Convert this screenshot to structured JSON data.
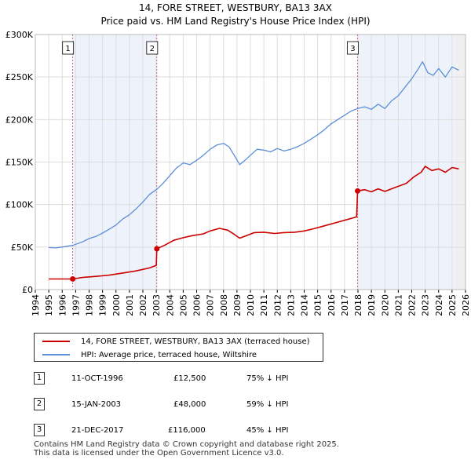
{
  "chart_data": {
    "type": "line",
    "title": "14, FORE STREET, WESTBURY, BA13 3AX",
    "subtitle": "Price paid vs. HM Land Registry's House Price Index (HPI)",
    "xlabel": "",
    "ylabel": "",
    "xlim": [
      1994,
      2026
    ],
    "ylim": [
      0,
      300000
    ],
    "x_ticks": [
      "1994",
      "1995",
      "1996",
      "1997",
      "1998",
      "1999",
      "2000",
      "2001",
      "2002",
      "2003",
      "2004",
      "2005",
      "2006",
      "2007",
      "2008",
      "2009",
      "2010",
      "2011",
      "2012",
      "2013",
      "2014",
      "2015",
      "2016",
      "2017",
      "2018",
      "2019",
      "2020",
      "2021",
      "2022",
      "2023",
      "2024",
      "2025",
      "2026"
    ],
    "y_ticks": [
      {
        "value": 0,
        "label": "£0"
      },
      {
        "value": 50000,
        "label": "£50K"
      },
      {
        "value": 100000,
        "label": "£100K"
      },
      {
        "value": 150000,
        "label": "£150K"
      },
      {
        "value": 200000,
        "label": "£200K"
      },
      {
        "value": 250000,
        "label": "£250K"
      },
      {
        "value": 300000,
        "label": "£300K"
      }
    ],
    "series": [
      {
        "name": "14, FORE STREET, WESTBURY, BA13 3AX (terraced house)",
        "color": "#cc0000",
        "points": [
          [
            1995.0,
            12500
          ],
          [
            1996.78,
            12500
          ],
          [
            1997.5,
            14200
          ],
          [
            1998.5,
            15500
          ],
          [
            1999.5,
            17000
          ],
          [
            2000.5,
            19500
          ],
          [
            2001.5,
            22000
          ],
          [
            2002.5,
            25500
          ],
          [
            2003.0,
            28500
          ],
          [
            2003.04,
            48000
          ],
          [
            2003.6,
            52000
          ],
          [
            2004.3,
            58000
          ],
          [
            2005.0,
            61000
          ],
          [
            2005.7,
            63500
          ],
          [
            2006.5,
            65500
          ],
          [
            2007.0,
            69000
          ],
          [
            2007.7,
            72000
          ],
          [
            2008.3,
            70000
          ],
          [
            2008.8,
            65000
          ],
          [
            2009.2,
            60500
          ],
          [
            2009.7,
            63500
          ],
          [
            2010.3,
            67000
          ],
          [
            2011.0,
            67500
          ],
          [
            2011.8,
            66000
          ],
          [
            2012.5,
            67000
          ],
          [
            2013.3,
            67500
          ],
          [
            2014.0,
            69000
          ],
          [
            2014.7,
            71500
          ],
          [
            2015.5,
            75000
          ],
          [
            2016.3,
            78500
          ],
          [
            2017.0,
            81500
          ],
          [
            2017.9,
            85500
          ],
          [
            2017.97,
            116000
          ],
          [
            2018.5,
            117500
          ],
          [
            2019.0,
            115000
          ],
          [
            2019.5,
            118500
          ],
          [
            2020.0,
            115500
          ],
          [
            2020.5,
            118500
          ],
          [
            2021.0,
            121500
          ],
          [
            2021.6,
            125000
          ],
          [
            2022.2,
            133000
          ],
          [
            2022.7,
            138000
          ],
          [
            2023.0,
            145000
          ],
          [
            2023.5,
            140000
          ],
          [
            2024.0,
            142000
          ],
          [
            2024.5,
            138000
          ],
          [
            2025.0,
            143500
          ],
          [
            2025.5,
            142000
          ]
        ]
      },
      {
        "name": "HPI: Average price, terraced house, Wiltshire",
        "color": "#5b8fd6",
        "points": [
          [
            1995.0,
            49500
          ],
          [
            1995.5,
            49000
          ],
          [
            1996.0,
            50000
          ],
          [
            1996.78,
            52000
          ],
          [
            1997.5,
            56000
          ],
          [
            1998.0,
            60000
          ],
          [
            1998.5,
            62500
          ],
          [
            1999.0,
            66500
          ],
          [
            1999.5,
            71000
          ],
          [
            2000.0,
            76000
          ],
          [
            2000.5,
            83000
          ],
          [
            2001.0,
            88000
          ],
          [
            2001.5,
            95000
          ],
          [
            2002.0,
            103000
          ],
          [
            2002.5,
            112000
          ],
          [
            2003.04,
            118000
          ],
          [
            2003.5,
            125000
          ],
          [
            2004.0,
            134000
          ],
          [
            2004.5,
            143000
          ],
          [
            2005.0,
            149000
          ],
          [
            2005.5,
            147000
          ],
          [
            2006.0,
            152000
          ],
          [
            2006.5,
            158000
          ],
          [
            2007.0,
            165000
          ],
          [
            2007.5,
            170000
          ],
          [
            2008.0,
            172000
          ],
          [
            2008.4,
            168000
          ],
          [
            2008.8,
            158000
          ],
          [
            2009.2,
            147000
          ],
          [
            2009.6,
            152000
          ],
          [
            2010.0,
            158000
          ],
          [
            2010.5,
            165000
          ],
          [
            2011.0,
            164000
          ],
          [
            2011.5,
            162000
          ],
          [
            2012.0,
            166000
          ],
          [
            2012.5,
            163000
          ],
          [
            2013.0,
            165000
          ],
          [
            2013.5,
            168000
          ],
          [
            2014.0,
            172000
          ],
          [
            2014.5,
            177000
          ],
          [
            2015.0,
            182000
          ],
          [
            2015.5,
            188000
          ],
          [
            2016.0,
            195000
          ],
          [
            2016.5,
            200000
          ],
          [
            2017.0,
            205000
          ],
          [
            2017.5,
            210000
          ],
          [
            2017.97,
            213000
          ],
          [
            2018.5,
            215000
          ],
          [
            2019.0,
            212000
          ],
          [
            2019.5,
            218000
          ],
          [
            2020.0,
            213000
          ],
          [
            2020.5,
            222000
          ],
          [
            2021.0,
            228000
          ],
          [
            2021.5,
            238000
          ],
          [
            2022.0,
            248000
          ],
          [
            2022.5,
            260000
          ],
          [
            2022.8,
            268000
          ],
          [
            2023.2,
            255000
          ],
          [
            2023.6,
            252000
          ],
          [
            2024.0,
            260000
          ],
          [
            2024.5,
            250000
          ],
          [
            2025.0,
            262000
          ],
          [
            2025.5,
            258000
          ]
        ]
      }
    ],
    "sales": [
      {
        "id": "1",
        "date": "11-OCT-1996",
        "year": 1996.78,
        "price": 12500
      },
      {
        "id": "2",
        "date": "15-JAN-2003",
        "year": 2003.04,
        "price": 48000
      },
      {
        "id": "3",
        "date": "21-DEC-2017",
        "year": 2017.97,
        "price": 116000
      }
    ],
    "future_shade_from": 2025.2
  },
  "table": {
    "rows": [
      {
        "id": "1",
        "date": "11-OCT-1996",
        "price": "£12,500",
        "hpi": "75% ↓ HPI"
      },
      {
        "id": "2",
        "date": "15-JAN-2003",
        "price": "£48,000",
        "hpi": "59% ↓ HPI"
      },
      {
        "id": "3",
        "date": "21-DEC-2017",
        "price": "£116,000",
        "hpi": "45% ↓ HPI"
      }
    ]
  },
  "footer": {
    "line1": "Contains HM Land Registry data © Crown copyright and database right 2025.",
    "line2": "This data is licensed under the Open Government Licence v3.0."
  }
}
